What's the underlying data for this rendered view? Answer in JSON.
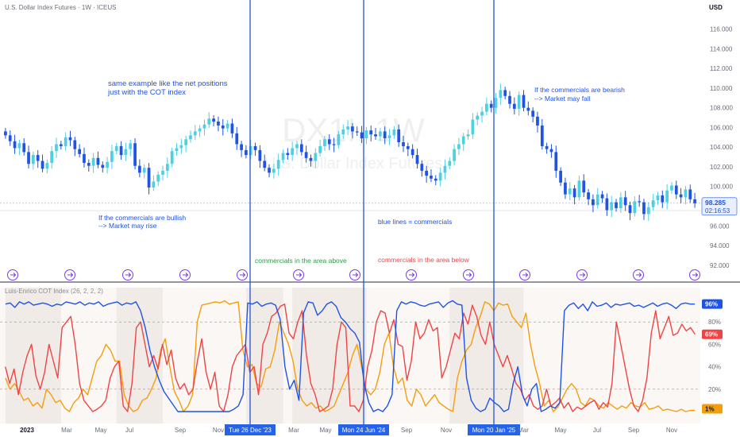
{
  "header": {
    "title": "U.S. Dollar Index Futures · 1W · ICEUS",
    "currency": "USD"
  },
  "watermark": {
    "symbol": "DX1!, 1W",
    "name": "U.S. Dollar Index Futures"
  },
  "price_badge": {
    "price": "98.285",
    "countdown": "02:16:53"
  },
  "annotations": {
    "top_note_1": "same example like the net positions",
    "top_note_2": "just with the COT index",
    "bullish_1": "If the commercials are bullish",
    "bullish_2": "--> Market may rise",
    "bearish_1": "If the commercials are bearish",
    "bearish_2": "--> Market may fall",
    "blue_lines": "blue lines = commercials",
    "area_above": "commercials in the area above",
    "area_below": "commercials in the area below"
  },
  "indicator": {
    "name": "Luis-Enrico COT Index (26, 2, 2, 2)"
  },
  "time_axis": {
    "labels": [
      "2023",
      "Mar",
      "May",
      "Jul",
      "Sep",
      "Nov",
      "Mar",
      "May",
      "Sep",
      "Nov",
      "Mar",
      "May",
      "Jul",
      "Sep",
      "Nov"
    ],
    "markers": [
      "Tue 26 Dec '23",
      "Mon 24 Jun '24",
      "Mon 20 Jan '25"
    ]
  },
  "colors": {
    "up": "#4dd0e1",
    "down": "#1e53e5",
    "commercials": "#1e53e5",
    "red_line": "#ef4444",
    "orange_line": "#f59e0b",
    "vline": "#2155d6"
  },
  "chart_data": [
    {
      "type": "candlestick",
      "title": "U.S. Dollar Index Futures · 1W · ICEUS",
      "y_ticks": [
        92,
        94,
        96,
        98,
        100,
        102,
        104,
        106,
        108,
        110,
        112,
        114,
        116
      ],
      "ylim": [
        91.5,
        117.5
      ],
      "close": [
        105.2,
        104.6,
        103.9,
        104.4,
        103.5,
        102.3,
        103.2,
        102.6,
        101.8,
        102.4,
        103.6,
        104.3,
        104.1,
        105.0,
        104.7,
        103.8,
        103.3,
        102.4,
        102.1,
        102.9,
        102.2,
        101.9,
        102.5,
        103.6,
        104.1,
        103.2,
        103.8,
        104.4,
        102.1,
        101.4,
        101.9,
        99.9,
        100.5,
        101.2,
        101.6,
        102.3,
        103.6,
        103.9,
        104.2,
        104.8,
        105.2,
        105.6,
        105.9,
        106.3,
        106.9,
        106.6,
        106.2,
        105.9,
        106.4,
        105.4,
        104.3,
        103.7,
        103.2,
        104.1,
        103.7,
        102.6,
        101.9,
        101.4,
        101.8,
        102.7,
        103.4,
        103.2,
        103.9,
        104.3,
        103.5,
        102.9,
        102.6,
        103.4,
        104.1,
        104.8,
        104.3,
        104.2,
        105.3,
        105.8,
        106.1,
        105.6,
        105.5,
        104.9,
        105.7,
        105.3,
        105.1,
        105.6,
        104.9,
        105.2,
        105.8,
        104.5,
        104.1,
        103.8,
        103.2,
        102.3,
        101.6,
        101.1,
        100.8,
        100.6,
        101.4,
        102.1,
        102.6,
        103.8,
        104.3,
        105.1,
        105.3,
        106.8,
        107.2,
        107.6,
        108.4,
        108.0,
        109.0,
        109.8,
        109.2,
        108.4,
        107.9,
        109.3,
        108.0,
        107.7,
        107.1,
        106.2,
        104.1,
        103.8,
        103.5,
        101.6,
        100.4,
        99.2,
        99.8,
        98.9,
        100.6,
        99.4,
        98.7,
        98.1,
        99.2,
        98.8,
        97.6,
        98.4,
        97.8,
        98.9,
        98.1,
        97.3,
        98.5,
        98.4,
        97.2,
        97.9,
        98.6,
        99.1,
        98.4,
        99.6,
        100.1,
        99.2,
        98.9,
        99.7,
        98.7,
        98.3
      ]
    },
    {
      "type": "line",
      "title": "Luis-Enrico COT Index (26, 2, 2, 2)",
      "y_ticks": [
        20,
        40,
        60,
        80
      ],
      "ylim": [
        -5,
        105
      ],
      "levels": [
        80,
        20
      ],
      "last_values": [
        "96%",
        "69%",
        "1%"
      ],
      "series": [
        {
          "name": "",
          "color": "blue",
          "values": [
            96,
            97,
            93,
            98,
            96,
            98,
            95,
            96,
            97,
            96,
            94,
            96,
            95,
            98,
            97,
            96,
            98,
            95,
            97,
            96,
            98,
            94,
            96,
            97,
            98,
            95,
            97,
            96,
            98,
            90,
            75,
            55,
            40,
            28,
            18,
            12,
            6,
            0,
            0,
            0,
            0,
            0,
            0,
            0,
            0,
            0,
            0,
            0,
            0,
            2,
            5,
            15,
            97,
            96,
            98,
            94,
            96,
            97,
            95,
            82,
            40,
            20,
            28,
            10,
            88,
            98,
            97,
            86,
            90,
            96,
            98,
            94,
            84,
            80,
            74,
            70,
            62,
            25,
            8,
            0,
            2,
            0,
            5,
            15,
            90,
            98,
            96,
            98,
            97,
            95,
            94,
            96,
            97,
            98,
            93,
            97,
            99,
            96,
            95,
            30,
            10,
            3,
            0,
            2,
            12,
            8,
            5,
            0,
            2,
            25,
            40,
            15,
            5,
            20,
            25,
            0,
            2,
            5,
            3,
            8,
            90,
            95,
            97,
            92,
            96,
            90,
            98,
            94,
            95,
            97,
            93,
            96,
            95,
            96,
            97,
            94,
            95,
            93,
            95,
            97,
            94,
            96,
            97,
            95,
            92,
            96,
            97,
            96,
            96
          ]
        },
        {
          "name": "",
          "color": "red",
          "values": [
            40,
            25,
            38,
            15,
            35,
            50,
            60,
            32,
            20,
            35,
            60,
            45,
            30,
            75,
            80,
            85,
            60,
            25,
            10,
            5,
            0,
            2,
            5,
            10,
            30,
            40,
            45,
            5,
            0,
            25,
            75,
            80,
            60,
            40,
            50,
            38,
            60,
            42,
            55,
            30,
            20,
            25,
            15,
            20,
            45,
            65,
            35,
            20,
            35,
            5,
            0,
            15,
            40,
            50,
            55,
            60,
            35,
            40,
            15,
            60,
            70,
            85,
            88,
            94,
            96,
            70,
            65,
            80,
            90,
            50,
            25,
            15,
            0,
            2,
            5,
            20,
            60,
            80,
            75,
            5,
            5,
            0,
            10,
            40,
            55,
            80,
            90,
            88,
            70,
            82,
            60,
            58,
            28,
            45,
            80,
            65,
            70,
            82,
            72,
            75,
            30,
            40,
            55,
            70,
            65,
            88,
            78,
            95,
            85,
            68,
            60,
            80,
            60,
            50,
            40,
            50,
            38,
            25,
            20,
            10,
            15,
            5,
            2,
            5,
            20,
            5,
            8,
            12,
            3,
            8,
            0,
            4,
            2,
            5,
            8,
            10,
            2,
            8,
            4,
            25,
            80,
            60,
            40,
            20,
            5,
            0,
            10,
            30,
            70,
            90,
            65,
            75,
            85,
            68,
            70,
            78,
            72,
            75,
            69
          ]
        },
        {
          "name": "",
          "color": "orange",
          "values": [
            30,
            20,
            25,
            18,
            10,
            12,
            5,
            8,
            3,
            20,
            15,
            8,
            10,
            3,
            0,
            8,
            12,
            20,
            15,
            30,
            45,
            50,
            60,
            55,
            45,
            45,
            15,
            5,
            0,
            2,
            10,
            12,
            20,
            30,
            55,
            65,
            40,
            18,
            10,
            0,
            5,
            15,
            80,
            95,
            96,
            97,
            98,
            97,
            99,
            96,
            97,
            98,
            55,
            40,
            42,
            25,
            22,
            38,
            40,
            55,
            80,
            70,
            60,
            45,
            20,
            10,
            5,
            8,
            3,
            5,
            0,
            2,
            5,
            15,
            25,
            35,
            50,
            60,
            40,
            20,
            15,
            20,
            35,
            60,
            70,
            40,
            25,
            30,
            10,
            5,
            20,
            15,
            5,
            10,
            15,
            8,
            5,
            2,
            0,
            30,
            45,
            55,
            60,
            75,
            85,
            98,
            96,
            90,
            97,
            95,
            96,
            85,
            80,
            75,
            88,
            60,
            40,
            25,
            5,
            10,
            0,
            4,
            12,
            20,
            25,
            20,
            8,
            5,
            12,
            10,
            5,
            3,
            8,
            5,
            2,
            5,
            3,
            8,
            5,
            4,
            8,
            2,
            3,
            5,
            1,
            2,
            1,
            0,
            2,
            0,
            1,
            1
          ]
        }
      ]
    }
  ]
}
